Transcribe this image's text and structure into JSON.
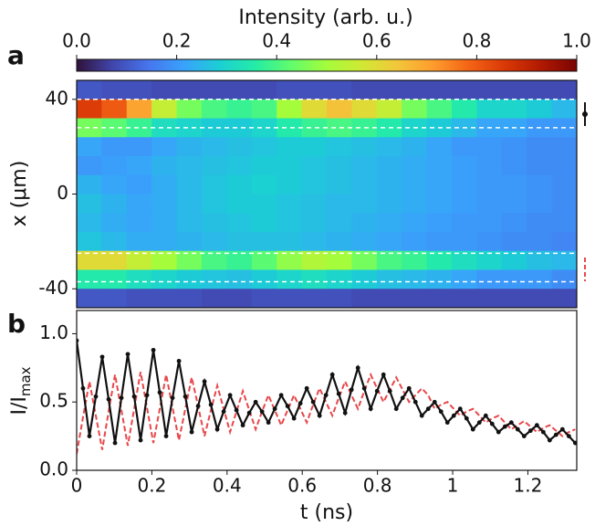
{
  "chart_data": [
    {
      "type": "heatmap",
      "panel_label": "a",
      "colorbar_title": "Intensity (arb. u.)",
      "colormap": [
        "#30123b",
        "#4145ab",
        "#4675ed",
        "#39a2fc",
        "#1bcfd4",
        "#24eca6",
        "#61fc6c",
        "#a4fc3b",
        "#d1e834",
        "#f3c63a",
        "#fe9b2d",
        "#f36315",
        "#d93806",
        "#b11901",
        "#7a0402"
      ],
      "clim": [
        0,
        1
      ],
      "cticks": [
        {
          "value": 0,
          "label": "0.0"
        },
        {
          "value": 0.2,
          "label": "0.2"
        },
        {
          "value": 0.4,
          "label": "0.4"
        },
        {
          "value": 0.6,
          "label": "0.6"
        },
        {
          "value": 0.8,
          "label": "0.8"
        },
        {
          "value": 1,
          "label": "1.0"
        }
      ],
      "ylabel": "x (μm)",
      "xlim": [
        0,
        1.33
      ],
      "ylim": [
        -48,
        48
      ],
      "yticks": [
        40,
        0,
        -40
      ],
      "channel_lines": [
        40,
        28,
        -25,
        -37
      ],
      "y": [
        44,
        36,
        28,
        20,
        12,
        4,
        -4,
        -12,
        -20,
        -28,
        -36,
        -44
      ],
      "values": [
        [
          0.1,
          0.09,
          0.09,
          0.08,
          0.08,
          0.08,
          0.08,
          0.08,
          0.09,
          0.09,
          0.09,
          0.08,
          0.08,
          0.08,
          0.08,
          0.08,
          0.08,
          0.08,
          0.08,
          0.08
        ],
        [
          0.85,
          0.8,
          0.7,
          0.55,
          0.45,
          0.4,
          0.38,
          0.4,
          0.5,
          0.6,
          0.65,
          0.6,
          0.55,
          0.45,
          0.4,
          0.35,
          0.3,
          0.3,
          0.28,
          0.25
        ],
        [
          0.45,
          0.42,
          0.38,
          0.32,
          0.3,
          0.28,
          0.28,
          0.3,
          0.35,
          0.38,
          0.4,
          0.38,
          0.35,
          0.3,
          0.28,
          0.25,
          0.22,
          0.22,
          0.2,
          0.2
        ],
        [
          0.22,
          0.2,
          0.2,
          0.22,
          0.24,
          0.25,
          0.26,
          0.27,
          0.28,
          0.28,
          0.27,
          0.26,
          0.25,
          0.24,
          0.22,
          0.2,
          0.2,
          0.19,
          0.18,
          0.18
        ],
        [
          0.2,
          0.21,
          0.22,
          0.24,
          0.25,
          0.26,
          0.27,
          0.28,
          0.28,
          0.27,
          0.26,
          0.25,
          0.24,
          0.23,
          0.22,
          0.21,
          0.2,
          0.19,
          0.18,
          0.18
        ],
        [
          0.24,
          0.22,
          0.21,
          0.23,
          0.25,
          0.27,
          0.28,
          0.29,
          0.28,
          0.27,
          0.26,
          0.25,
          0.24,
          0.23,
          0.22,
          0.21,
          0.2,
          0.2,
          0.19,
          0.18
        ],
        [
          0.26,
          0.24,
          0.22,
          0.23,
          0.25,
          0.27,
          0.28,
          0.28,
          0.27,
          0.26,
          0.25,
          0.25,
          0.24,
          0.23,
          0.22,
          0.21,
          0.2,
          0.2,
          0.19,
          0.18
        ],
        [
          0.25,
          0.23,
          0.22,
          0.23,
          0.25,
          0.26,
          0.27,
          0.28,
          0.27,
          0.26,
          0.25,
          0.24,
          0.23,
          0.22,
          0.21,
          0.2,
          0.2,
          0.19,
          0.18,
          0.18
        ],
        [
          0.27,
          0.25,
          0.23,
          0.23,
          0.24,
          0.25,
          0.26,
          0.26,
          0.26,
          0.25,
          0.24,
          0.23,
          0.22,
          0.21,
          0.2,
          0.2,
          0.19,
          0.18,
          0.18,
          0.17
        ],
        [
          0.6,
          0.6,
          0.55,
          0.5,
          0.45,
          0.4,
          0.38,
          0.42,
          0.48,
          0.52,
          0.5,
          0.45,
          0.4,
          0.38,
          0.35,
          0.32,
          0.3,
          0.28,
          0.26,
          0.25
        ],
        [
          0.35,
          0.35,
          0.32,
          0.3,
          0.28,
          0.27,
          0.26,
          0.28,
          0.3,
          0.32,
          0.3,
          0.28,
          0.26,
          0.25,
          0.24,
          0.22,
          0.2,
          0.2,
          0.2,
          0.18
        ],
        [
          0.1,
          0.1,
          0.09,
          0.09,
          0.09,
          0.08,
          0.08,
          0.09,
          0.09,
          0.09,
          0.09,
          0.08,
          0.08,
          0.08,
          0.08,
          0.08,
          0.08,
          0.08,
          0.08,
          0.08
        ]
      ]
    },
    {
      "type": "line",
      "panel_label": "b",
      "xlabel": "t (ns)",
      "ylabel": "I/I",
      "ylabel_sub": "max",
      "xlim": [
        0,
        1.33
      ],
      "ylim": [
        0,
        1.17
      ],
      "xticks": [
        0,
        0.2,
        0.4,
        0.6,
        0.8,
        1,
        1.2
      ],
      "yticks": [
        {
          "value": 0,
          "label": "0.0"
        },
        {
          "value": 0.5,
          "label": "0.5"
        },
        {
          "value": 1,
          "label": "1.0"
        }
      ],
      "x": [
        0,
        0.017,
        0.034,
        0.051,
        0.068,
        0.085,
        0.102,
        0.119,
        0.136,
        0.153,
        0.17,
        0.187,
        0.204,
        0.221,
        0.238,
        0.255,
        0.272,
        0.289,
        0.306,
        0.323,
        0.34,
        0.357,
        0.374,
        0.391,
        0.408,
        0.425,
        0.442,
        0.459,
        0.476,
        0.493,
        0.51,
        0.527,
        0.544,
        0.561,
        0.578,
        0.595,
        0.612,
        0.629,
        0.646,
        0.663,
        0.68,
        0.697,
        0.714,
        0.731,
        0.748,
        0.765,
        0.782,
        0.799,
        0.816,
        0.833,
        0.85,
        0.867,
        0.884,
        0.901,
        0.918,
        0.935,
        0.952,
        0.969,
        0.986,
        1.003,
        1.02,
        1.037,
        1.054,
        1.071,
        1.088,
        1.105,
        1.122,
        1.139,
        1.156,
        1.173,
        1.19,
        1.207,
        1.224,
        1.241,
        1.258,
        1.275,
        1.292,
        1.309,
        1.326
      ],
      "series": [
        {
          "color": "#e8474a",
          "dashed": true,
          "values": [
            0.12,
            0.39,
            0.65,
            0.4,
            0.15,
            0.43,
            0.7,
            0.44,
            0.18,
            0.45,
            0.72,
            0.46,
            0.2,
            0.45,
            0.7,
            0.46,
            0.22,
            0.45,
            0.68,
            0.47,
            0.25,
            0.44,
            0.62,
            0.45,
            0.28,
            0.43,
            0.58,
            0.44,
            0.3,
            0.43,
            0.55,
            0.44,
            0.33,
            0.44,
            0.55,
            0.45,
            0.35,
            0.48,
            0.6,
            0.5,
            0.4,
            0.53,
            0.65,
            0.55,
            0.45,
            0.58,
            0.7,
            0.6,
            0.5,
            0.59,
            0.68,
            0.59,
            0.5,
            0.55,
            0.6,
            0.55,
            0.45,
            0.48,
            0.5,
            0.45,
            0.4,
            0.43,
            0.45,
            0.4,
            0.35,
            0.38,
            0.4,
            0.35,
            0.3,
            0.33,
            0.36,
            0.32,
            0.28,
            0.31,
            0.33,
            0.29,
            0.25,
            0.28,
            0.3
          ]
        },
        {
          "color": "#111111",
          "dashed": false,
          "markers": true,
          "values": [
            0.95,
            0.6,
            0.25,
            0.54,
            0.83,
            0.52,
            0.2,
            0.53,
            0.85,
            0.54,
            0.22,
            0.55,
            0.88,
            0.57,
            0.25,
            0.53,
            0.8,
            0.54,
            0.28,
            0.47,
            0.65,
            0.48,
            0.3,
            0.43,
            0.55,
            0.44,
            0.33,
            0.42,
            0.5,
            0.43,
            0.35,
            0.45,
            0.55,
            0.47,
            0.38,
            0.49,
            0.6,
            0.5,
            0.4,
            0.55,
            0.7,
            0.56,
            0.42,
            0.59,
            0.75,
            0.6,
            0.45,
            0.58,
            0.7,
            0.58,
            0.45,
            0.53,
            0.6,
            0.5,
            0.4,
            0.45,
            0.5,
            0.43,
            0.35,
            0.4,
            0.45,
            0.38,
            0.3,
            0.35,
            0.4,
            0.34,
            0.28,
            0.32,
            0.35,
            0.3,
            0.25,
            0.29,
            0.33,
            0.28,
            0.22,
            0.26,
            0.3,
            0.25,
            0.2
          ]
        }
      ]
    }
  ]
}
